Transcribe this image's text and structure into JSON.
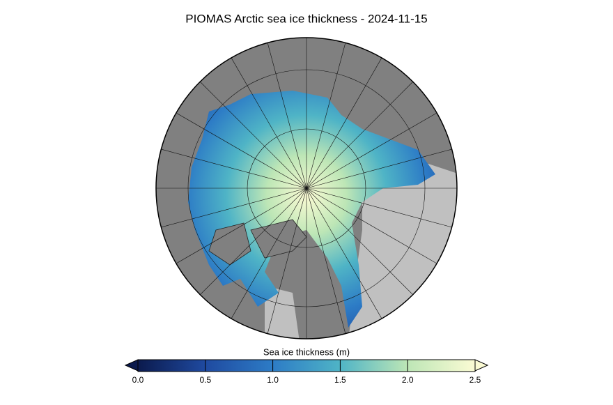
{
  "chart_data": {
    "type": "polar-map",
    "title": "PIOMAS Arctic sea ice thickness - 2024-11-15",
    "colorbar": {
      "label": "Sea ice thickness (m)",
      "lim": [
        0,
        2.5
      ],
      "ticks": [
        {
          "value": 0,
          "label": "0.0"
        },
        0.5,
        {
          "value": 1,
          "label": "1.0"
        },
        1.5,
        {
          "value": 2,
          "label": "2.0"
        },
        2.5
      ],
      "colors": [
        "#0b1a4d",
        "#1f4aa0",
        "#2d7cc6",
        "#4fb4c6",
        "#bde6b6",
        "#fbfbd4"
      ]
    }
  }
}
